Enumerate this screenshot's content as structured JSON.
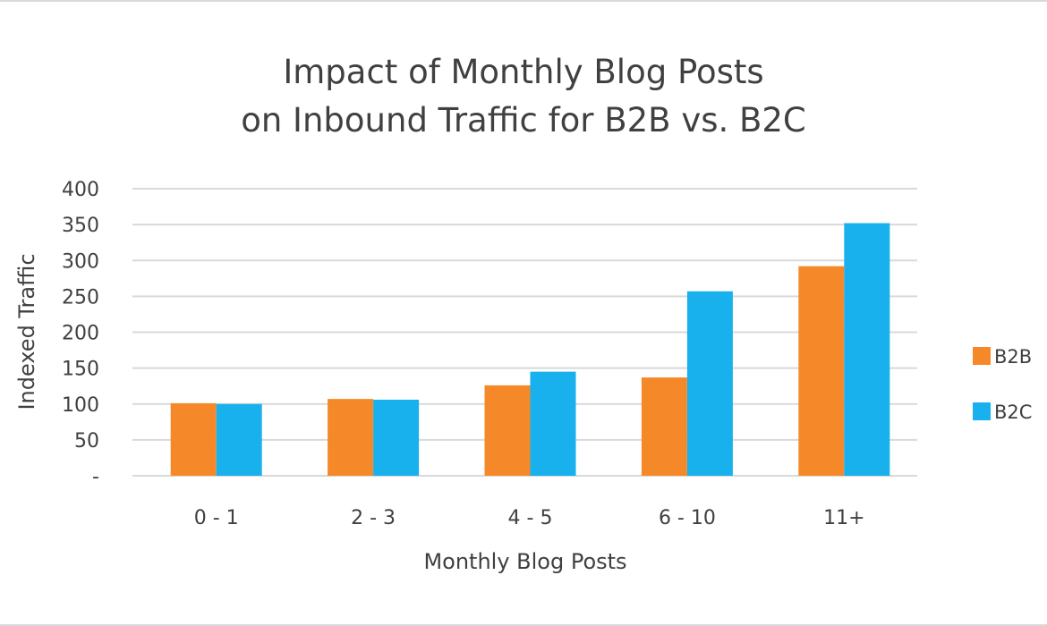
{
  "chart_data": {
    "type": "bar",
    "title": [
      "Impact of Monthly Blog Posts",
      "on Inbound Traffic for B2B vs. B2C"
    ],
    "xlabel": "Monthly Blog Posts",
    "ylabel": "Indexed Traffic",
    "categories": [
      "0 - 1",
      "2 - 3",
      "4 - 5",
      "6 - 10",
      "11+"
    ],
    "series": [
      {
        "name": "B2B",
        "color": "#f5892a",
        "values": [
          101,
          107,
          126,
          137,
          292
        ]
      },
      {
        "name": "B2C",
        "color": "#19b0ee",
        "values": [
          100,
          106,
          145,
          257,
          352
        ]
      }
    ],
    "ylim": [
      0,
      400
    ],
    "yticks": [
      0,
      50,
      100,
      150,
      200,
      250,
      300,
      350,
      400
    ],
    "ytick_labels": [
      "-",
      "50",
      "100",
      "150",
      "200",
      "250",
      "300",
      "350",
      "400"
    ],
    "grid": true,
    "legend_position": "right",
    "gridline_color": "#d9d9d9"
  }
}
